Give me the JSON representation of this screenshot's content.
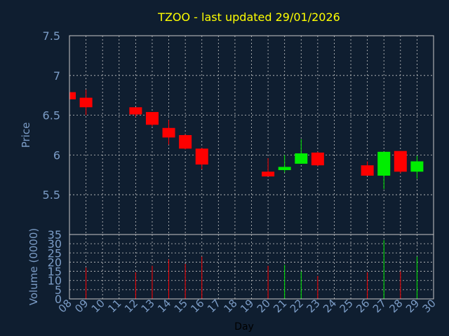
{
  "title": "TZOO - last updated 29/01/2026",
  "colors": {
    "background": "#0f1e30",
    "title": "#ffff00",
    "axis_text": "#7b9cc6",
    "grid": "#c8c8c8",
    "up": "#00ee00",
    "down": "#ff0000"
  },
  "chart_data": [
    {
      "type": "candlestick",
      "ylabel": "Price",
      "ylim": [
        5.0,
        7.5
      ],
      "yticks": [
        "5.5",
        "6",
        "6.5",
        "7",
        "7.5"
      ],
      "grid": true,
      "candles": [
        {
          "x": 8,
          "open": 6.79,
          "high": 6.79,
          "low": 6.69,
          "close": 6.7
        },
        {
          "x": 9,
          "open": 6.72,
          "high": 6.82,
          "low": 6.5,
          "close": 6.6
        },
        {
          "x": 12,
          "open": 6.6,
          "high": 6.6,
          "low": 6.48,
          "close": 6.51
        },
        {
          "x": 13,
          "open": 6.54,
          "high": 6.54,
          "low": 6.36,
          "close": 6.38
        },
        {
          "x": 14,
          "open": 6.34,
          "high": 6.44,
          "low": 6.13,
          "close": 6.22
        },
        {
          "x": 15,
          "open": 6.25,
          "high": 6.26,
          "low": 6.07,
          "close": 6.08
        },
        {
          "x": 16,
          "open": 6.08,
          "high": 6.09,
          "low": 5.82,
          "close": 5.88
        },
        {
          "x": 20,
          "open": 5.79,
          "high": 5.96,
          "low": 5.73,
          "close": 5.73
        },
        {
          "x": 21,
          "open": 5.81,
          "high": 6.0,
          "low": 5.78,
          "close": 5.85
        },
        {
          "x": 22,
          "open": 5.89,
          "high": 6.2,
          "low": 5.89,
          "close": 6.02
        },
        {
          "x": 23,
          "open": 6.03,
          "high": 6.04,
          "low": 5.86,
          "close": 5.87
        },
        {
          "x": 26,
          "open": 5.87,
          "high": 5.92,
          "low": 5.74,
          "close": 5.74
        },
        {
          "x": 27,
          "open": 5.74,
          "high": 6.04,
          "low": 5.57,
          "close": 6.04
        },
        {
          "x": 28,
          "open": 6.05,
          "high": 6.05,
          "low": 5.77,
          "close": 5.79
        },
        {
          "x": 29,
          "open": 5.79,
          "high": 5.99,
          "low": 5.7,
          "close": 5.92
        }
      ]
    },
    {
      "type": "bar",
      "ylabel": "Volume (0000)",
      "xlabel": "Day",
      "ylim": [
        0,
        35
      ],
      "yticks": [
        "0",
        "5",
        "10",
        "15",
        "20",
        "25",
        "30",
        "35"
      ],
      "xticks": [
        "08",
        "09",
        "10",
        "11",
        "12",
        "13",
        "14",
        "15",
        "16",
        "17",
        "18",
        "19",
        "20",
        "21",
        "22",
        "23",
        "24",
        "25",
        "26",
        "27",
        "28",
        "29",
        "30"
      ],
      "grid": true,
      "volumes": [
        {
          "x": 9,
          "value": 17,
          "dir": "down"
        },
        {
          "x": 12,
          "value": 14.5,
          "dir": "down"
        },
        {
          "x": 13,
          "value": 18,
          "dir": "down"
        },
        {
          "x": 14,
          "value": 21.5,
          "dir": "down"
        },
        {
          "x": 15,
          "value": 19,
          "dir": "down"
        },
        {
          "x": 16,
          "value": 23,
          "dir": "down"
        },
        {
          "x": 20,
          "value": 18,
          "dir": "down"
        },
        {
          "x": 21,
          "value": 18.5,
          "dir": "up"
        },
        {
          "x": 22,
          "value": 15,
          "dir": "up"
        },
        {
          "x": 23,
          "value": 12.5,
          "dir": "down"
        },
        {
          "x": 26,
          "value": 14.5,
          "dir": "down"
        },
        {
          "x": 27,
          "value": 32,
          "dir": "up"
        },
        {
          "x": 28,
          "value": 15,
          "dir": "down"
        },
        {
          "x": 29,
          "value": 23,
          "dir": "up"
        }
      ]
    }
  ]
}
